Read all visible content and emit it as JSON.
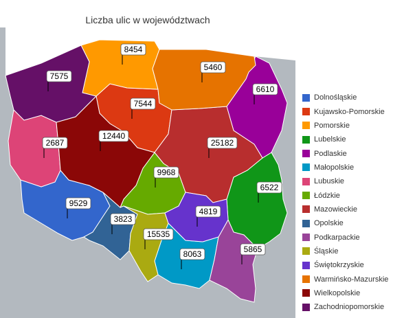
{
  "chart_data": {
    "type": "choropleth",
    "title": "Liczba ulic w województwach",
    "legend_placement": "right",
    "regions": [
      {
        "name": "Dolnośląskie",
        "value": 9529,
        "color": "#3366cc"
      },
      {
        "name": "Kujawsko-Pomorskie",
        "value": 7544,
        "color": "#dc3912"
      },
      {
        "name": "Pomorskie",
        "value": 8454,
        "color": "#ff9900"
      },
      {
        "name": "Lubelskie",
        "value": 6522,
        "color": "#109618"
      },
      {
        "name": "Podlaskie",
        "value": 6610,
        "color": "#990099"
      },
      {
        "name": "Małopolskie",
        "value": 8063,
        "color": "#0099c6"
      },
      {
        "name": "Lubuskie",
        "value": 2687,
        "color": "#dd4477"
      },
      {
        "name": "Łódzkie",
        "value": 9968,
        "color": "#66aa00"
      },
      {
        "name": "Mazowieckie",
        "value": 25182,
        "color": "#b82e2e"
      },
      {
        "name": "Opolskie",
        "value": 3823,
        "color": "#316395"
      },
      {
        "name": "Podkarpackie",
        "value": 5865,
        "color": "#994499"
      },
      {
        "name": "Śląskie",
        "value": 15535,
        "color": "#aaaa11"
      },
      {
        "name": "Świętokrzyskie",
        "value": 4819,
        "color": "#6633cc"
      },
      {
        "name": "Warmińsko-Mazurskie",
        "value": 5460,
        "color": "#e67300"
      },
      {
        "name": "Wielkopolskie",
        "value": 12440,
        "color": "#8b0707"
      },
      {
        "name": "Zachodniopomorskie",
        "value": 7575,
        "color": "#651067"
      }
    ]
  },
  "colors": {
    "background_land": "#b3b9bf",
    "sea": "#ffffff",
    "region_border": "#ffffff"
  }
}
